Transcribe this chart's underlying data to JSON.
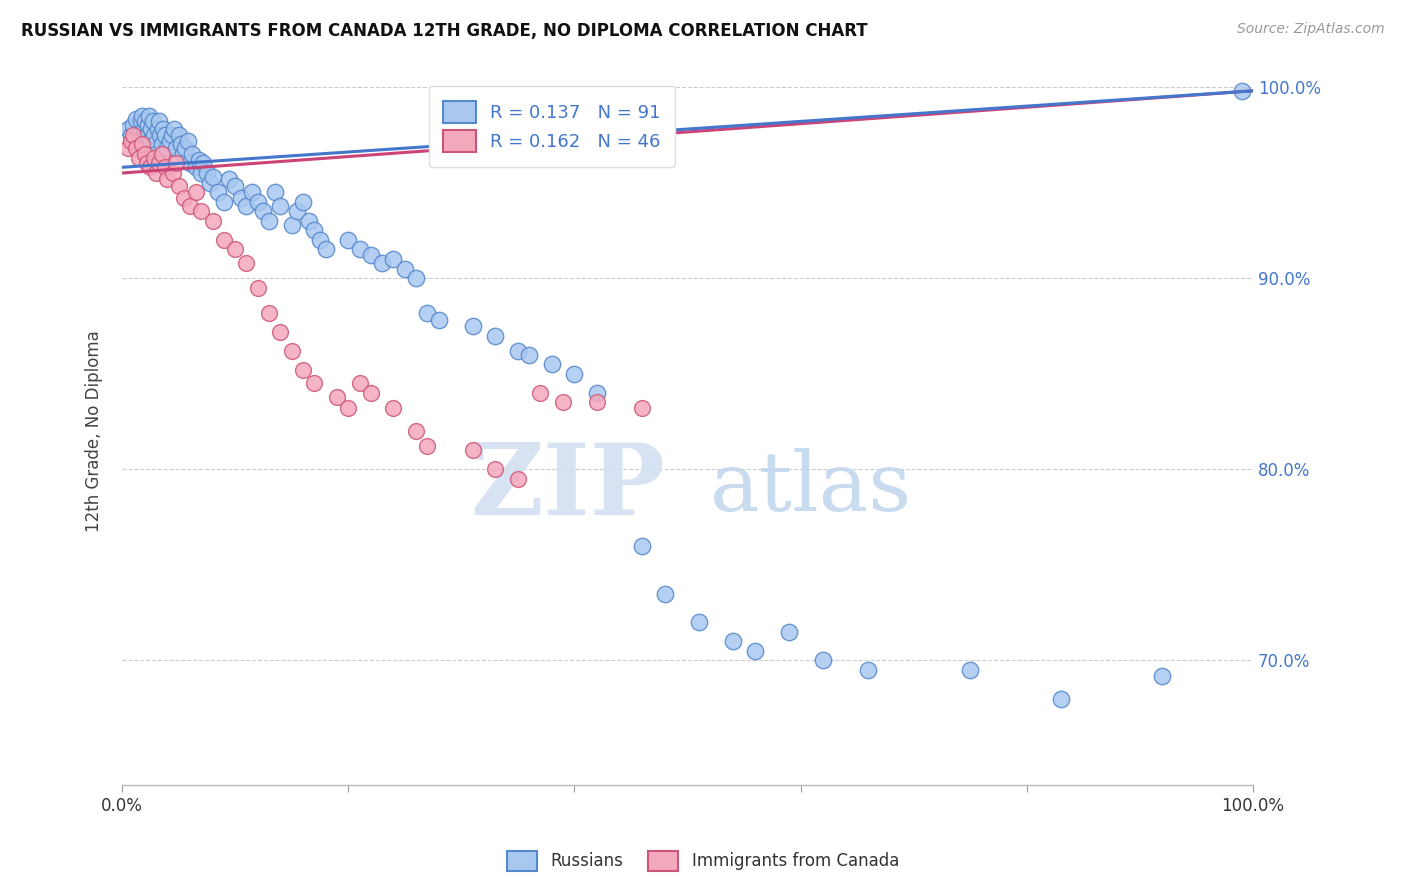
{
  "title": "RUSSIAN VS IMMIGRANTS FROM CANADA 12TH GRADE, NO DIPLOMA CORRELATION CHART",
  "source": "Source: ZipAtlas.com",
  "ylabel": "12th Grade, No Diploma",
  "blue_R": 0.137,
  "blue_N": 91,
  "pink_R": 0.162,
  "pink_N": 46,
  "legend_label_blue": "Russians",
  "legend_label_pink": "Immigrants from Canada",
  "blue_color": "#A8C8F0",
  "pink_color": "#F4A8BC",
  "blue_edge_color": "#5588CC",
  "pink_edge_color": "#CC5577",
  "blue_line_color": "#4477CC",
  "pink_line_color": "#CC4477",
  "watermark_zip": "ZIP",
  "watermark_atlas": "atlas",
  "blue_marker_size": 140,
  "pink_marker_size": 130,
  "xlim": [
    0.0,
    1.0
  ],
  "ylim": [
    0.635,
    1.005
  ],
  "grid_color": "#CCCCCC",
  "background_color": "#FFFFFF",
  "blue_trend_x0": 0.0,
  "blue_trend_y0": 0.958,
  "blue_trend_x1": 1.0,
  "blue_trend_y1": 0.998,
  "pink_trend_x0": 0.0,
  "pink_trend_y0": 0.955,
  "pink_trend_x1": 1.0,
  "pink_trend_y1": 0.998,
  "blue_points_x": [
    0.005,
    0.008,
    0.01,
    0.012,
    0.014,
    0.015,
    0.017,
    0.018,
    0.019,
    0.02,
    0.022,
    0.023,
    0.024,
    0.025,
    0.026,
    0.027,
    0.028,
    0.029,
    0.03,
    0.032,
    0.033,
    0.034,
    0.035,
    0.036,
    0.038,
    0.04,
    0.042,
    0.044,
    0.046,
    0.048,
    0.05,
    0.052,
    0.054,
    0.056,
    0.058,
    0.06,
    0.062,
    0.065,
    0.068,
    0.07,
    0.072,
    0.075,
    0.078,
    0.08,
    0.085,
    0.09,
    0.095,
    0.1,
    0.105,
    0.11,
    0.115,
    0.12,
    0.125,
    0.13,
    0.135,
    0.14,
    0.15,
    0.155,
    0.16,
    0.165,
    0.17,
    0.175,
    0.18,
    0.2,
    0.21,
    0.22,
    0.23,
    0.24,
    0.25,
    0.26,
    0.27,
    0.28,
    0.31,
    0.33,
    0.35,
    0.36,
    0.38,
    0.4,
    0.42,
    0.46,
    0.48,
    0.51,
    0.54,
    0.56,
    0.59,
    0.62,
    0.66,
    0.75,
    0.83,
    0.92,
    0.99
  ],
  "blue_points_y": [
    0.978,
    0.975,
    0.98,
    0.983,
    0.97,
    0.975,
    0.982,
    0.985,
    0.978,
    0.982,
    0.975,
    0.98,
    0.985,
    0.972,
    0.978,
    0.982,
    0.975,
    0.97,
    0.965,
    0.978,
    0.982,
    0.975,
    0.97,
    0.978,
    0.975,
    0.968,
    0.972,
    0.975,
    0.978,
    0.968,
    0.975,
    0.97,
    0.965,
    0.968,
    0.972,
    0.96,
    0.965,
    0.958,
    0.962,
    0.955,
    0.96,
    0.955,
    0.95,
    0.953,
    0.945,
    0.94,
    0.952,
    0.948,
    0.942,
    0.938,
    0.945,
    0.94,
    0.935,
    0.93,
    0.945,
    0.938,
    0.928,
    0.935,
    0.94,
    0.93,
    0.925,
    0.92,
    0.915,
    0.92,
    0.915,
    0.912,
    0.908,
    0.91,
    0.905,
    0.9,
    0.882,
    0.878,
    0.875,
    0.87,
    0.862,
    0.86,
    0.855,
    0.85,
    0.84,
    0.76,
    0.735,
    0.72,
    0.71,
    0.705,
    0.715,
    0.7,
    0.695,
    0.695,
    0.68,
    0.692,
    0.998
  ],
  "pink_points_x": [
    0.005,
    0.008,
    0.01,
    0.012,
    0.015,
    0.018,
    0.02,
    0.022,
    0.025,
    0.028,
    0.03,
    0.033,
    0.035,
    0.038,
    0.04,
    0.045,
    0.048,
    0.05,
    0.055,
    0.06,
    0.065,
    0.07,
    0.08,
    0.09,
    0.1,
    0.11,
    0.12,
    0.13,
    0.14,
    0.15,
    0.16,
    0.17,
    0.19,
    0.2,
    0.21,
    0.22,
    0.24,
    0.26,
    0.27,
    0.31,
    0.33,
    0.35,
    0.37,
    0.39,
    0.42,
    0.46
  ],
  "pink_points_y": [
    0.968,
    0.972,
    0.975,
    0.968,
    0.963,
    0.97,
    0.965,
    0.96,
    0.958,
    0.963,
    0.955,
    0.96,
    0.965,
    0.958,
    0.952,
    0.955,
    0.96,
    0.948,
    0.942,
    0.938,
    0.945,
    0.935,
    0.93,
    0.92,
    0.915,
    0.908,
    0.895,
    0.882,
    0.872,
    0.862,
    0.852,
    0.845,
    0.838,
    0.832,
    0.845,
    0.84,
    0.832,
    0.82,
    0.812,
    0.81,
    0.8,
    0.795,
    0.84,
    0.835,
    0.835,
    0.832
  ]
}
